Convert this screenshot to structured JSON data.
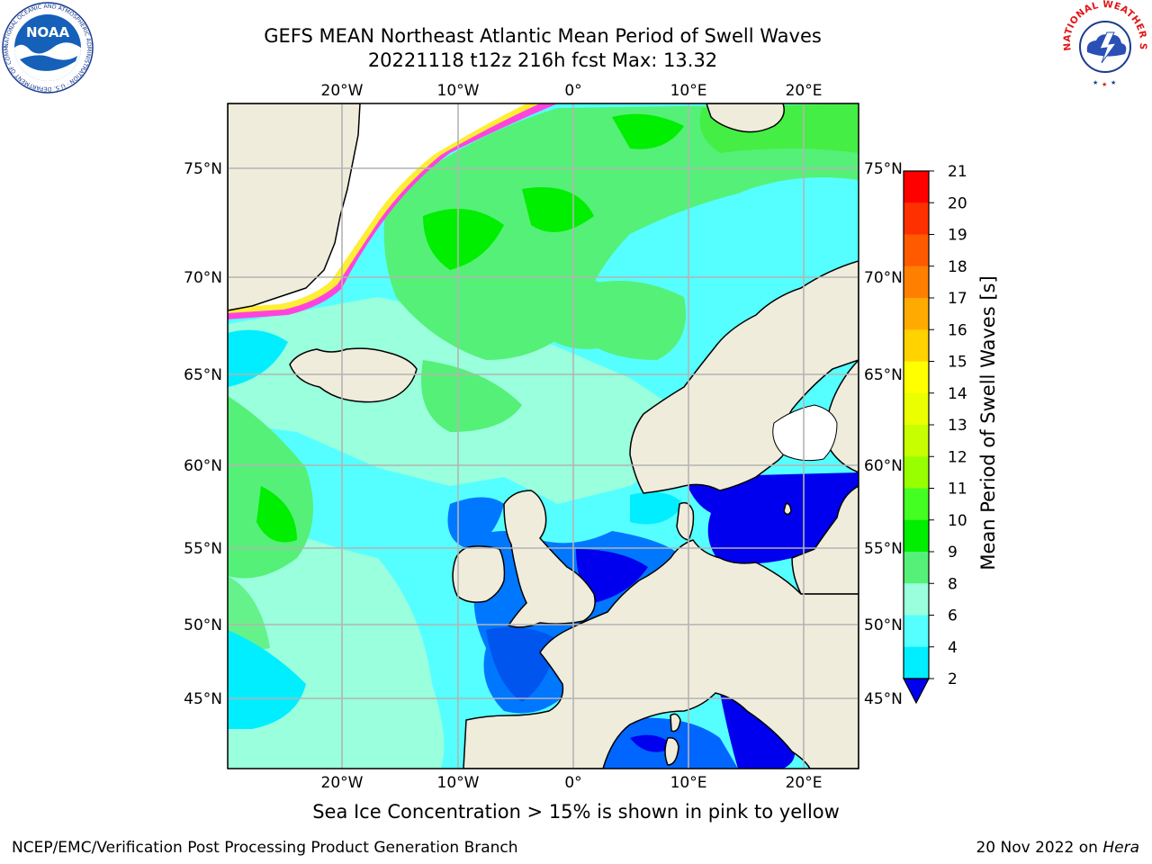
{
  "title": {
    "line1": "GEFS MEAN Northeast Atlantic Mean Period of Swell Waves",
    "line2": "20221118 t12z 216h fcst   Max: 13.32"
  },
  "map": {
    "lon_labels": [
      "20°W",
      "10°W",
      "0°",
      "10°E",
      "20°E"
    ],
    "lat_labels": [
      "75°N",
      "70°N",
      "65°N",
      "60°N",
      "55°N",
      "50°N",
      "45°N"
    ],
    "colors": {
      "land": "#efecdc",
      "grid": "#b4b4b4",
      "ice_pink": "#ff44dd",
      "ice_yellow": "#ffee33",
      "ice_free": "#ffffff"
    }
  },
  "colorbar": {
    "label": "Mean Period of Swell Waves [s]",
    "ticks": [
      "21",
      "20",
      "19",
      "18",
      "17",
      "16",
      "15",
      "14",
      "13",
      "12",
      "11",
      "10",
      "9",
      "8",
      "6",
      "4",
      "2"
    ],
    "colors": [
      "#ff0000",
      "#ff3000",
      "#ff5a00",
      "#ff8000",
      "#ffaa00",
      "#ffd200",
      "#ffff00",
      "#eaff00",
      "#c8ff00",
      "#98ff00",
      "#44ff22",
      "#00ee00",
      "#55f077",
      "#99ffdd",
      "#55ffff",
      "#00eeff",
      "#0077ff",
      "#0000ee"
    ]
  },
  "ice_note": "Sea Ice Concentration > 15% is shown in pink to yellow",
  "footer": {
    "left": "NCEP/EMC/Verification Post Processing Product Generation Branch",
    "date": "20 Nov 2022 on",
    "host": "Hera"
  },
  "logos": {
    "noaa_text": "NOAA",
    "noaa_ring": "NATIONAL OCEANIC AND ATMOSPHERIC ADMINISTRATION · U.S. DEPARTMENT OF COMMERCE",
    "nws_ring": "NATIONAL WEATHER SERVICE"
  }
}
